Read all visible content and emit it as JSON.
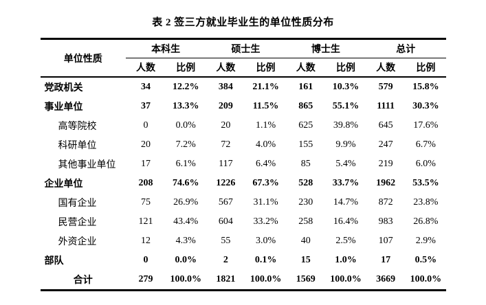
{
  "title": "表 2 签三方就业毕业生的单位性质分布",
  "table": {
    "corner_header": "单位性质",
    "groups": [
      {
        "label": "本科生"
      },
      {
        "label": "硕士生"
      },
      {
        "label": "博士生"
      },
      {
        "label": "总计"
      }
    ],
    "subheaders": [
      "人数",
      "比例"
    ],
    "rows": [
      {
        "label": "党政机关",
        "bold": true,
        "indent": false,
        "center": false,
        "values": [
          "34",
          "12.2%",
          "384",
          "21.1%",
          "161",
          "10.3%",
          "579",
          "15.8%"
        ]
      },
      {
        "label": "事业单位",
        "bold": true,
        "indent": false,
        "center": false,
        "values": [
          "37",
          "13.3%",
          "209",
          "11.5%",
          "865",
          "55.1%",
          "1111",
          "30.3%"
        ]
      },
      {
        "label": "高等院校",
        "bold": false,
        "indent": true,
        "center": false,
        "values": [
          "0",
          "0.0%",
          "20",
          "1.1%",
          "625",
          "39.8%",
          "645",
          "17.6%"
        ]
      },
      {
        "label": "科研单位",
        "bold": false,
        "indent": true,
        "center": false,
        "values": [
          "20",
          "7.2%",
          "72",
          "4.0%",
          "155",
          "9.9%",
          "247",
          "6.7%"
        ]
      },
      {
        "label": "其他事业单位",
        "bold": false,
        "indent": true,
        "center": false,
        "values": [
          "17",
          "6.1%",
          "117",
          "6.4%",
          "85",
          "5.4%",
          "219",
          "6.0%"
        ]
      },
      {
        "label": "企业单位",
        "bold": true,
        "indent": false,
        "center": false,
        "values": [
          "208",
          "74.6%",
          "1226",
          "67.3%",
          "528",
          "33.7%",
          "1962",
          "53.5%"
        ]
      },
      {
        "label": "国有企业",
        "bold": false,
        "indent": true,
        "center": false,
        "values": [
          "75",
          "26.9%",
          "567",
          "31.1%",
          "230",
          "14.7%",
          "872",
          "23.8%"
        ]
      },
      {
        "label": "民营企业",
        "bold": false,
        "indent": true,
        "center": false,
        "values": [
          "121",
          "43.4%",
          "604",
          "33.2%",
          "258",
          "16.4%",
          "983",
          "26.8%"
        ]
      },
      {
        "label": "外资企业",
        "bold": false,
        "indent": true,
        "center": false,
        "values": [
          "12",
          "4.3%",
          "55",
          "3.0%",
          "40",
          "2.5%",
          "107",
          "2.9%"
        ]
      },
      {
        "label": "部队",
        "bold": true,
        "indent": false,
        "center": false,
        "values": [
          "0",
          "0.0%",
          "2",
          "0.1%",
          "15",
          "1.0%",
          "17",
          "0.5%"
        ]
      },
      {
        "label": "合计",
        "bold": true,
        "indent": false,
        "center": true,
        "values": [
          "279",
          "100.0%",
          "1821",
          "100.0%",
          "1569",
          "100.0%",
          "3669",
          "100.0%"
        ]
      }
    ]
  },
  "colors": {
    "text": "#000000",
    "background": "#ffffff",
    "rule": "#000000"
  }
}
